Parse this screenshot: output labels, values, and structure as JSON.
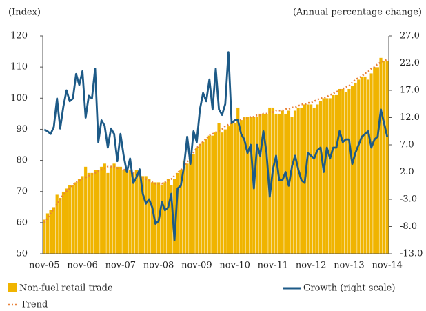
{
  "chart_data": {
    "type": "bar",
    "y_label": "(Index)",
    "y2_label": "(Annual percentage change)",
    "ylim": [
      50,
      120
    ],
    "yticks": [
      50,
      60,
      70,
      80,
      90,
      100,
      110,
      120
    ],
    "y2lim": [
      -13,
      27
    ],
    "y2ticks": [
      {
        "value": -13,
        "label": "-13.0"
      },
      {
        "value": -8,
        "label": "-8.0"
      },
      {
        "value": -3,
        "label": "-3.0"
      },
      {
        "value": 2,
        "label": "2.0"
      },
      {
        "value": 7,
        "label": "7.0"
      },
      {
        "value": 12,
        "label": "12.0"
      },
      {
        "value": 17,
        "label": "17.0"
      },
      {
        "value": 22,
        "label": "22.0"
      },
      {
        "value": 27,
        "label": "27.0"
      }
    ],
    "categories": [
      "nov-05",
      null,
      null,
      null,
      null,
      null,
      null,
      null,
      null,
      null,
      null,
      null,
      "nov-06",
      null,
      null,
      null,
      null,
      null,
      null,
      null,
      null,
      null,
      null,
      null,
      "nov-07",
      null,
      null,
      null,
      null,
      null,
      null,
      null,
      null,
      null,
      null,
      null,
      "nov-08",
      null,
      null,
      null,
      null,
      null,
      null,
      null,
      null,
      null,
      null,
      null,
      "nov-09",
      null,
      null,
      null,
      null,
      null,
      null,
      null,
      null,
      null,
      null,
      null,
      "nov-10",
      null,
      null,
      null,
      null,
      null,
      null,
      null,
      null,
      null,
      null,
      null,
      "nov-11",
      null,
      null,
      null,
      null,
      null,
      null,
      null,
      null,
      null,
      null,
      null,
      "nov-12",
      null,
      null,
      null,
      null,
      null,
      null,
      null,
      null,
      null,
      null,
      null,
      "nov-13",
      null,
      null,
      null,
      null,
      null,
      null,
      null,
      null,
      null,
      null,
      null,
      "nov-14"
    ],
    "series": [
      {
        "name": "Non-fuel retail trade",
        "type": "bar",
        "color": "#f0b400",
        "values": [
          61,
          63,
          64,
          65,
          69,
          68,
          70,
          71,
          72,
          72,
          73,
          74,
          75,
          78,
          76,
          76,
          77,
          77,
          78,
          79,
          76,
          78,
          79,
          78,
          78,
          77,
          77,
          77,
          76,
          77,
          76,
          75,
          75,
          74,
          73,
          73,
          73,
          72,
          73,
          74,
          72,
          74,
          76,
          77,
          80,
          79,
          81,
          82,
          84,
          85,
          86,
          87,
          88,
          88,
          89,
          92,
          89,
          90,
          91,
          92,
          92,
          97,
          93,
          94,
          94,
          94,
          94,
          94,
          95,
          95,
          95,
          97,
          97,
          95,
          95,
          96,
          95,
          96,
          94,
          96,
          97,
          97,
          98,
          98,
          98,
          97,
          98,
          99,
          100,
          100,
          100,
          101,
          101,
          103,
          103,
          102,
          103,
          104,
          105,
          106,
          107,
          107,
          106,
          108,
          110,
          110,
          113,
          112,
          112
        ]
      },
      {
        "name": "Trend",
        "type": "line",
        "dash": true,
        "color": "#e8823a",
        "values": [
          60,
          61.5,
          63,
          64.5,
          66,
          67.5,
          69,
          70,
          71,
          72,
          73,
          73.5,
          74,
          74.5,
          75,
          75.5,
          76,
          76.5,
          77,
          77.5,
          78,
          78,
          78,
          77.5,
          77.5,
          77,
          77,
          76.5,
          76,
          75.5,
          75,
          74.5,
          74,
          73.5,
          73,
          72.5,
          72.5,
          72.5,
          73,
          73.5,
          74,
          75,
          76,
          77,
          78,
          79.5,
          81,
          82.5,
          84,
          85,
          86,
          87,
          88,
          88.5,
          89,
          89.5,
          90,
          91,
          91.5,
          92,
          92.5,
          93,
          93,
          93.5,
          93.5,
          94,
          94,
          94.5,
          94.5,
          95,
          95,
          95.5,
          95.5,
          96,
          96,
          96,
          96.5,
          96.5,
          97,
          97,
          97.5,
          98,
          98,
          98.5,
          98.5,
          99,
          99.5,
          100,
          100,
          100.5,
          101,
          101.5,
          102,
          102.5,
          103,
          103.5,
          104,
          105,
          106,
          106.5,
          107,
          108,
          108.5,
          109.5,
          110,
          111,
          111.5,
          112,
          112.5
        ]
      },
      {
        "name": "Growth (right scale)",
        "type": "line",
        "axis": "y2",
        "color": "#1d5a87",
        "values": [
          9.8,
          9.5,
          9,
          10.3,
          15.5,
          10,
          14,
          17,
          15,
          15.5,
          20,
          18,
          20.5,
          12,
          16,
          15.5,
          21,
          7.5,
          11.5,
          10.5,
          6.5,
          10,
          9,
          4,
          9,
          5,
          2,
          4.5,
          0,
          1,
          2.5,
          -2,
          -3.8,
          -3,
          -4.5,
          -7.5,
          -7,
          -3.5,
          -5,
          -4.5,
          -2,
          -10.5,
          -1,
          -0.5,
          3,
          8.5,
          3.5,
          9.5,
          7.5,
          13.5,
          16.5,
          15,
          19,
          13.5,
          21,
          13.5,
          12.5,
          14.5,
          24,
          11,
          11.5,
          11.5,
          9,
          8,
          5.5,
          7,
          -1,
          7,
          5,
          9.5,
          5.5,
          -2.5,
          2.5,
          5,
          0.5,
          0.5,
          2,
          -0.5,
          3,
          5,
          2.5,
          0.5,
          0,
          5.5,
          5,
          4.5,
          6,
          6.5,
          2,
          6.5,
          4.5,
          6.5,
          6.5,
          9.5,
          7.5,
          8,
          8,
          3.5,
          5.5,
          7,
          8.5,
          9,
          9.5,
          6.5,
          8,
          8.5,
          13.5,
          11,
          8.5
        ]
      }
    ]
  }
}
